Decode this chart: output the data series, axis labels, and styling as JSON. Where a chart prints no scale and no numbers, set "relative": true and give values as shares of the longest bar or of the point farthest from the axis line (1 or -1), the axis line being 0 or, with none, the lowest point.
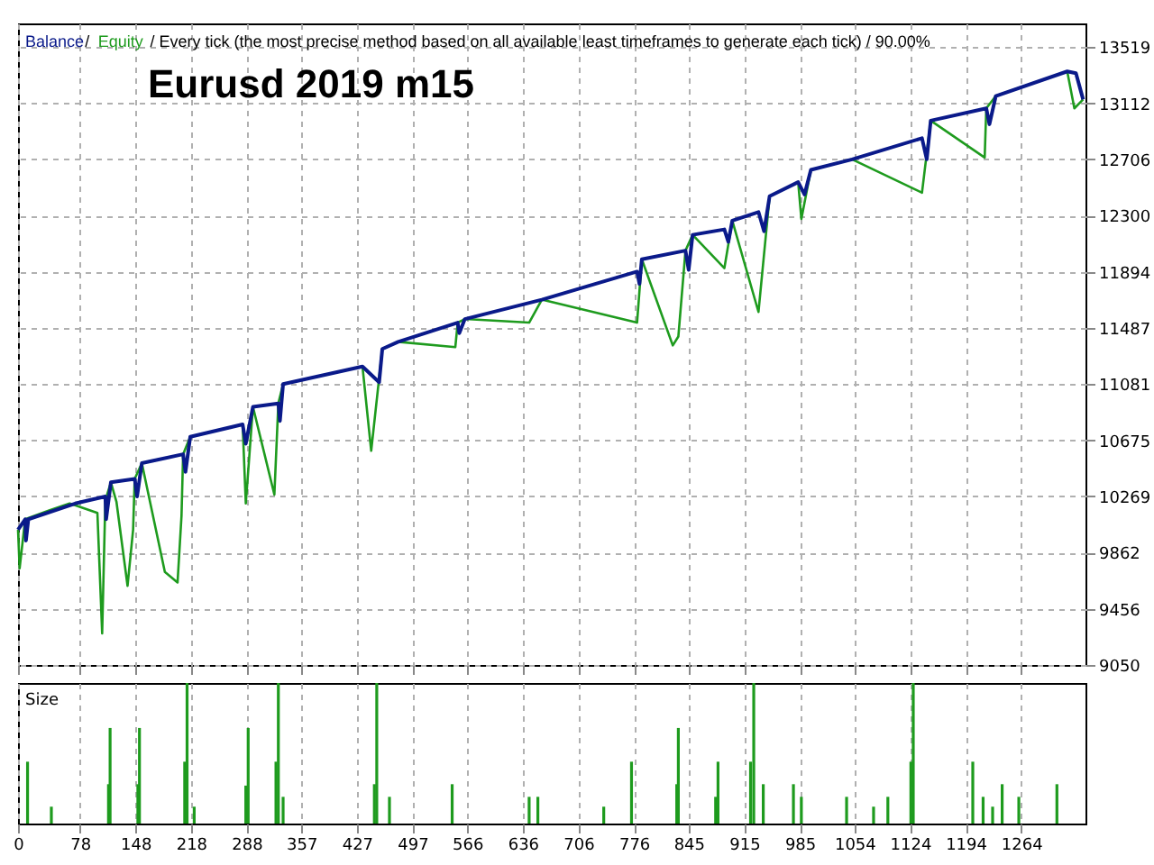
{
  "chart_data": [
    {
      "type": "line",
      "title": "Eurusd 2019 m15",
      "annotations": [
        "/",
        "/ Every tick (the most precise method based on all available least timeframes to generate each tick) / 90.00%"
      ],
      "legend": "top left",
      "grid": true,
      "tick_labels": "y",
      "line_style": "solid",
      "xlim": [
        0,
        1345
      ],
      "xticks": [
        0,
        78,
        148,
        218,
        288,
        357,
        427,
        497,
        566,
        636,
        706,
        776,
        845,
        915,
        985,
        1054,
        1124,
        1194,
        1264
      ],
      "ylim": [
        9050,
        13690
      ],
      "yticks": [
        9050,
        9456,
        9862,
        10269,
        10675,
        11081,
        11487,
        11894,
        12300,
        12706,
        13112,
        13519
      ],
      "series": [
        {
          "name": "Equity",
          "color": "#1e9b1e",
          "x": [
            0,
            2,
            9,
            40,
            65,
            72,
            100,
            106,
            110,
            117,
            124,
            138,
            145,
            147,
            156,
            185,
            201,
            206,
            208,
            217,
            283,
            287,
            296,
            323,
            328,
            334,
            434,
            445,
            459,
            479,
            551,
            554,
            563,
            644,
            660,
            780,
            786,
            825,
            832,
            841,
            850,
            890,
            900,
            933,
            947,
            983,
            987,
            999,
            1051,
            1139,
            1150,
            1218,
            1220,
            1232,
            1322,
            1331,
            1342
          ],
          "values": [
            10028,
            9749,
            10104,
            10170,
            10218,
            10205,
            10150,
            9279,
            10240,
            10371,
            10231,
            9622,
            10028,
            10396,
            10510,
            9723,
            9647,
            10130,
            10574,
            10700,
            10790,
            10218,
            10917,
            10282,
            10942,
            11082,
            11209,
            10599,
            11336,
            11387,
            11349,
            11526,
            11552,
            11526,
            11692,
            11526,
            11984,
            11361,
            11425,
            12047,
            12161,
            11920,
            12263,
            11603,
            12440,
            12542,
            12276,
            12631,
            12707,
            12466,
            12987,
            12720,
            13076,
            13165,
            13343,
            13076,
            13140
          ]
        },
        {
          "name": "Balance",
          "color": "#0a1a8a",
          "x": [
            0,
            9,
            10,
            13,
            72,
            110,
            111,
            117,
            147,
            150,
            156,
            208,
            211,
            217,
            283,
            287,
            296,
            328,
            330,
            334,
            434,
            455,
            459,
            479,
            554,
            556,
            563,
            660,
            780,
            783,
            786,
            841,
            845,
            850,
            890,
            895,
            900,
            933,
            940,
            947,
            983,
            991,
            999,
            1051,
            1139,
            1145,
            1150,
            1220,
            1224,
            1232,
            1322,
            1333,
            1342
          ],
          "values": [
            10028,
            10104,
            9950,
            10104,
            10218,
            10269,
            10104,
            10371,
            10396,
            10269,
            10510,
            10574,
            10447,
            10700,
            10790,
            10650,
            10917,
            10942,
            10815,
            11082,
            11209,
            11095,
            11336,
            11387,
            11526,
            11450,
            11552,
            11692,
            11895,
            11806,
            11984,
            12047,
            11908,
            12161,
            12200,
            12110,
            12263,
            12326,
            12187,
            12440,
            12542,
            12453,
            12631,
            12707,
            12860,
            12707,
            12987,
            13076,
            12961,
            13165,
            13343,
            13330,
            13140
          ]
        }
      ]
    },
    {
      "type": "bar",
      "title": "Size",
      "relative": true,
      "grid": "x",
      "tick_labels": "x",
      "xlim": [
        0,
        1345
      ],
      "xticks": [
        0,
        78,
        148,
        218,
        288,
        357,
        427,
        497,
        566,
        636,
        706,
        776,
        845,
        915,
        985,
        1054,
        1124,
        1194,
        1264
      ],
      "series": [
        {
          "color": "#1e9b1e",
          "x": [
            12,
            42,
            114,
            116,
            151,
            153,
            210,
            213,
            222,
            287,
            290,
            325,
            328,
            334,
            449,
            452,
            468,
            547,
            644,
            655,
            738,
            773,
            830,
            832,
            879,
            882,
            923,
            927,
            939,
            977,
            987,
            1044,
            1078,
            1096,
            1125,
            1128,
            1203,
            1216,
            1228,
            1240,
            1261,
            1309
          ],
          "values": [
            0.44,
            0.12,
            0.28,
            0.68,
            0.28,
            0.68,
            0.44,
            1,
            0.12,
            0.27,
            0.68,
            0.44,
            1,
            0.19,
            0.28,
            1,
            0.19,
            0.28,
            0.19,
            0.19,
            0.12,
            0.44,
            0.28,
            0.68,
            0.19,
            0.44,
            0.44,
            1,
            0.28,
            0.28,
            0.19,
            0.19,
            0.12,
            0.19,
            0.44,
            1,
            0.44,
            0.19,
            0.12,
            0.28,
            0.19,
            0.28
          ]
        }
      ]
    }
  ]
}
